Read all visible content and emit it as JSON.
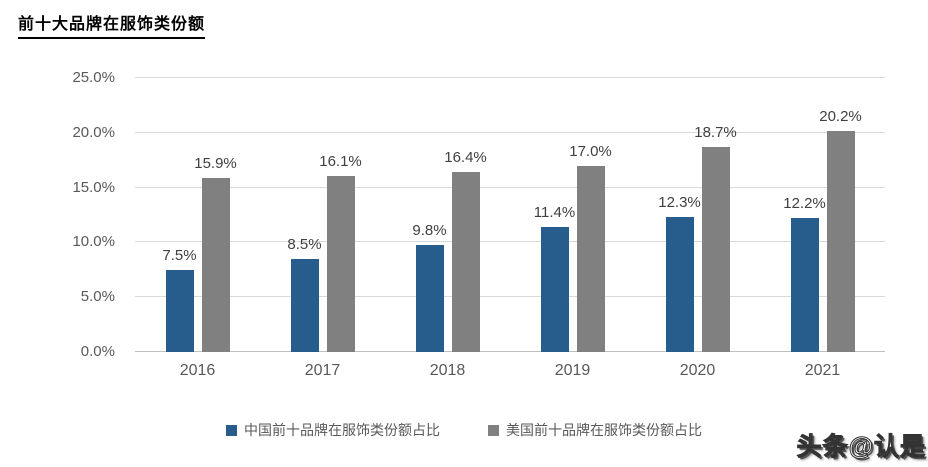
{
  "title": "前十大品牌在服饰类份额",
  "watermark": "头条@认是",
  "chart_data": {
    "type": "bar",
    "title": "前十大品牌在服饰类份额",
    "xlabel": "",
    "ylabel": "",
    "categories": [
      "2016",
      "2017",
      "2018",
      "2019",
      "2020",
      "2021"
    ],
    "series": [
      {
        "id": "china",
        "name": "中国前十品牌在服饰类份额占比",
        "color": "#265d8d",
        "values": [
          7.5,
          8.5,
          9.8,
          11.4,
          12.3,
          12.2
        ],
        "data_labels": [
          "7.5%",
          "8.5%",
          "9.8%",
          "11.4%",
          "12.3%",
          "12.2%"
        ]
      },
      {
        "id": "usa",
        "name": "美国前十品牌在服饰类份额占比",
        "color": "#808080",
        "values": [
          15.9,
          16.1,
          16.4,
          17.0,
          18.7,
          20.2
        ],
        "data_labels": [
          "15.9%",
          "16.1%",
          "16.4%",
          "17.0%",
          "18.7%",
          "20.2%"
        ]
      }
    ],
    "ylim": [
      0,
      25
    ],
    "ytick_step": 5,
    "ytick_labels": [
      "0.0%",
      "5.0%",
      "10.0%",
      "15.0%",
      "20.0%",
      "25.0%"
    ],
    "grid": true,
    "legend_position": "bottom"
  }
}
